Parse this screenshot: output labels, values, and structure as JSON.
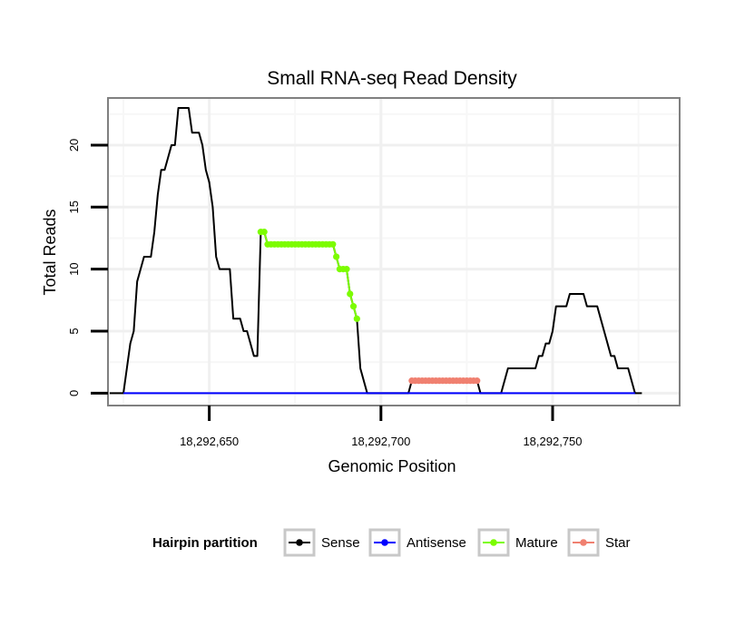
{
  "chart_data": {
    "type": "line",
    "title": "Small RNA-seq Read Density",
    "xlabel": "Genomic Position",
    "ylabel": "Total Reads",
    "xlim": [
      18292620.5,
      18292787
    ],
    "ylim": [
      -1,
      23.8
    ],
    "x_ticks": [
      18292650,
      18292700,
      18292750
    ],
    "x_tick_labels": [
      "18,292,650",
      "18,292,700",
      "18,292,750"
    ],
    "y_ticks": [
      0,
      5,
      10,
      15,
      20
    ],
    "y_tick_labels": [
      "0",
      "5",
      "10",
      "15",
      "20"
    ],
    "grid": true,
    "legend": {
      "title": "Hairpin partition",
      "position": "bottom",
      "entries": [
        {
          "name": "Sense",
          "color": "#000000"
        },
        {
          "name": "Antisense",
          "color": "#0000ff"
        },
        {
          "name": "Mature",
          "color": "#7cfc00"
        },
        {
          "name": "Star",
          "color": "#f08070"
        }
      ]
    },
    "series": [
      {
        "name": "Sense",
        "color": "#000000",
        "markers": false,
        "points": [
          [
            18292621,
            0
          ],
          [
            18292625,
            0
          ],
          [
            18292626,
            2
          ],
          [
            18292627,
            4
          ],
          [
            18292628,
            5
          ],
          [
            18292629,
            9
          ],
          [
            18292630,
            10
          ],
          [
            18292631,
            11
          ],
          [
            18292633,
            11
          ],
          [
            18292634,
            13
          ],
          [
            18292635,
            16
          ],
          [
            18292636,
            18
          ],
          [
            18292637,
            18
          ],
          [
            18292638,
            19
          ],
          [
            18292639,
            20
          ],
          [
            18292640,
            20
          ],
          [
            18292641,
            23
          ],
          [
            18292644,
            23
          ],
          [
            18292645,
            21
          ],
          [
            18292647,
            21
          ],
          [
            18292648,
            20
          ],
          [
            18292649,
            18
          ],
          [
            18292650,
            17
          ],
          [
            18292651,
            15
          ],
          [
            18292652,
            11
          ],
          [
            18292653,
            10
          ],
          [
            18292656,
            10
          ],
          [
            18292657,
            6
          ],
          [
            18292659,
            6
          ],
          [
            18292660,
            5
          ],
          [
            18292661,
            5
          ],
          [
            18292662,
            4
          ],
          [
            18292663,
            3
          ],
          [
            18292664,
            3
          ],
          [
            18292665,
            13
          ],
          [
            18292666,
            13
          ],
          [
            18292667,
            12
          ],
          [
            18292686,
            12
          ],
          [
            18292687,
            11
          ],
          [
            18292688,
            10
          ],
          [
            18292690,
            10
          ],
          [
            18292691,
            8
          ],
          [
            18292692,
            7
          ],
          [
            18292693,
            6
          ],
          [
            18292694,
            2
          ],
          [
            18292696,
            0
          ],
          [
            18292708,
            0
          ],
          [
            18292709,
            1
          ],
          [
            18292728,
            1
          ],
          [
            18292729,
            0
          ],
          [
            18292735,
            0
          ],
          [
            18292737,
            2
          ],
          [
            18292745,
            2
          ],
          [
            18292746,
            3
          ],
          [
            18292747,
            3
          ],
          [
            18292748,
            4
          ],
          [
            18292749,
            4
          ],
          [
            18292750,
            5
          ],
          [
            18292751,
            7
          ],
          [
            18292754,
            7
          ],
          [
            18292755,
            8
          ],
          [
            18292759,
            8
          ],
          [
            18292760,
            7
          ],
          [
            18292763,
            7
          ],
          [
            18292764,
            6
          ],
          [
            18292765,
            5
          ],
          [
            18292766,
            4
          ],
          [
            18292767,
            3
          ],
          [
            18292768,
            3
          ],
          [
            18292769,
            2
          ],
          [
            18292772,
            2
          ],
          [
            18292774,
            0
          ],
          [
            18292776,
            0
          ]
        ]
      },
      {
        "name": "Antisense",
        "color": "#0000ff",
        "markers": false,
        "points": [
          [
            18292625,
            0
          ],
          [
            18292774,
            0
          ]
        ]
      },
      {
        "name": "Mature",
        "color": "#7cfc00",
        "markers": true,
        "points": [
          [
            18292665,
            13
          ],
          [
            18292666,
            13
          ],
          [
            18292667,
            12
          ],
          [
            18292668,
            12
          ],
          [
            18292669,
            12
          ],
          [
            18292670,
            12
          ],
          [
            18292671,
            12
          ],
          [
            18292672,
            12
          ],
          [
            18292673,
            12
          ],
          [
            18292674,
            12
          ],
          [
            18292675,
            12
          ],
          [
            18292676,
            12
          ],
          [
            18292677,
            12
          ],
          [
            18292678,
            12
          ],
          [
            18292679,
            12
          ],
          [
            18292680,
            12
          ],
          [
            18292681,
            12
          ],
          [
            18292682,
            12
          ],
          [
            18292683,
            12
          ],
          [
            18292684,
            12
          ],
          [
            18292685,
            12
          ],
          [
            18292686,
            12
          ],
          [
            18292687,
            11
          ],
          [
            18292688,
            10
          ],
          [
            18292689,
            10
          ],
          [
            18292690,
            10
          ],
          [
            18292691,
            8
          ],
          [
            18292692,
            7
          ],
          [
            18292693,
            6
          ]
        ]
      },
      {
        "name": "Star",
        "color": "#f08070",
        "markers": true,
        "points": [
          [
            18292709,
            1
          ],
          [
            18292710,
            1
          ],
          [
            18292711,
            1
          ],
          [
            18292712,
            1
          ],
          [
            18292713,
            1
          ],
          [
            18292714,
            1
          ],
          [
            18292715,
            1
          ],
          [
            18292716,
            1
          ],
          [
            18292717,
            1
          ],
          [
            18292718,
            1
          ],
          [
            18292719,
            1
          ],
          [
            18292720,
            1
          ],
          [
            18292721,
            1
          ],
          [
            18292722,
            1
          ],
          [
            18292723,
            1
          ],
          [
            18292724,
            1
          ],
          [
            18292725,
            1
          ],
          [
            18292726,
            1
          ],
          [
            18292727,
            1
          ],
          [
            18292728,
            1
          ]
        ]
      }
    ]
  }
}
